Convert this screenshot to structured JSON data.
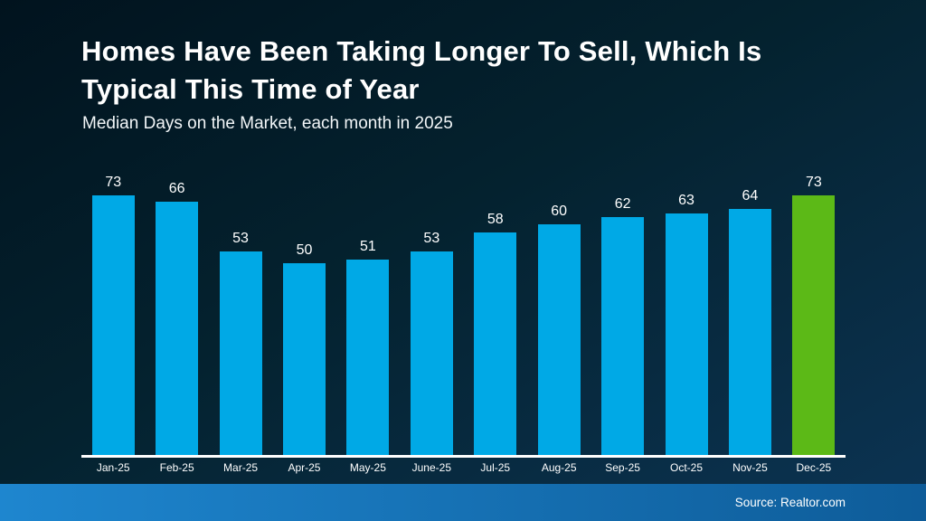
{
  "slide": {
    "title": "Homes Have Been Taking Longer To Sell, Which Is Typical This Time of Year",
    "subtitle": "Median Days on the Market, each month in 2025",
    "source": "Source: Realtor.com"
  },
  "colors": {
    "background_top_left": "#01131e",
    "background_bottom_right": "#0c3454",
    "bar_blue": "#00a9e6",
    "bar_green_highlight": "#5cb917",
    "axis_line": "#ffffff",
    "text": "#ffffff",
    "footer_gradient_left": "#1e86cf",
    "footer_gradient_right": "#0e5c99"
  },
  "chart_data": {
    "type": "bar",
    "title": "Median Days on the Market, each month in 2025",
    "categories": [
      "Jan-25",
      "Feb-25",
      "Mar-25",
      "Apr-25",
      "May-25",
      "June-25",
      "Jul-25",
      "Aug-25",
      "Sep-25",
      "Oct-25",
      "Nov-25",
      "Dec-25"
    ],
    "values": [
      73,
      66,
      53,
      50,
      51,
      53,
      58,
      60,
      62,
      63,
      64,
      73
    ],
    "highlight_index": 11,
    "xlabel": "",
    "ylabel": "Median Days on the Market",
    "ylim": [
      0,
      75
    ],
    "grid": false,
    "legend": false,
    "data_labels": true
  }
}
